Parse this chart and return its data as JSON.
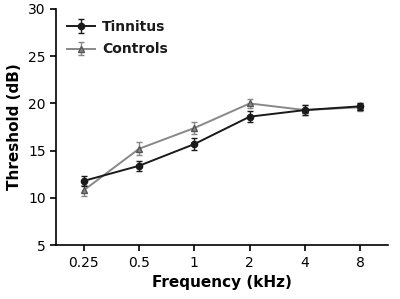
{
  "frequencies": [
    0.25,
    0.5,
    1,
    2,
    4,
    8
  ],
  "x_positions": [
    1,
    2,
    3,
    4,
    5,
    6
  ],
  "x_tick_labels": [
    "0.25",
    "0.5",
    "1",
    "2",
    "4",
    "8"
  ],
  "tinnitus_means": [
    11.8,
    13.4,
    15.7,
    18.6,
    19.3,
    19.7
  ],
  "tinnitus_errors": [
    0.5,
    0.5,
    0.6,
    0.6,
    0.5,
    0.4
  ],
  "controls_means": [
    10.8,
    15.2,
    17.4,
    20.0,
    19.3,
    19.6
  ],
  "controls_errors": [
    0.6,
    0.7,
    0.6,
    0.5,
    0.5,
    0.4
  ],
  "ylim": [
    5,
    30
  ],
  "yticks": [
    5,
    10,
    15,
    20,
    25,
    30
  ],
  "xlabel": "Frequency (kHz)",
  "ylabel": "Threshold (dB)",
  "legend_labels": [
    "Tinnitus",
    "Controls"
  ],
  "tinnitus_color": "#1a1a1a",
  "controls_color": "#888888",
  "background_color": "#ffffff",
  "axis_fontsize": 11,
  "tick_fontsize": 10,
  "legend_fontsize": 10
}
